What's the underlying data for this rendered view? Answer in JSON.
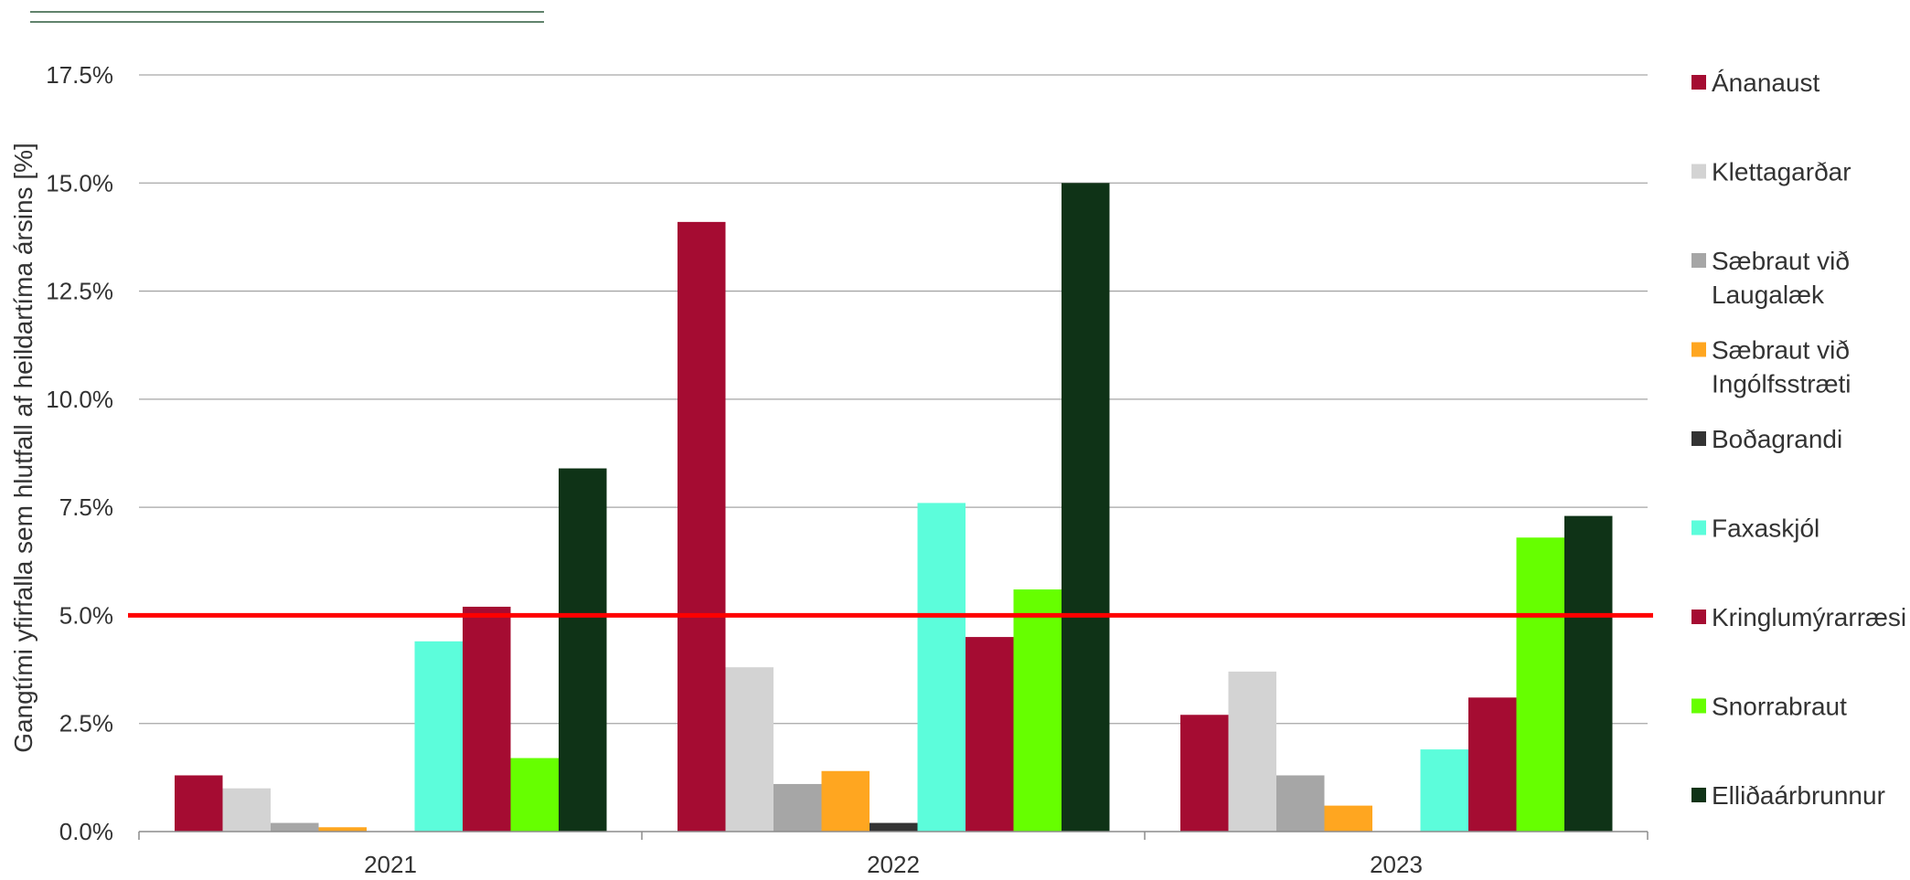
{
  "chart_data": {
    "type": "bar",
    "title": "",
    "xlabel": "",
    "ylabel": "Gangtími yfirfalla sem hlutfall af heildartíma ársins [%]",
    "ylim": [
      0,
      17.5
    ],
    "yticks": [
      "0.0%",
      "2.5%",
      "5.0%",
      "7.5%",
      "10.0%",
      "12.5%",
      "15.0%",
      "17.5%"
    ],
    "ytick_values": [
      0,
      2.5,
      5,
      7.5,
      10,
      12.5,
      15,
      17.5
    ],
    "grid": "horizontal",
    "legend_position": "right",
    "categories": [
      "2021",
      "2022",
      "2023"
    ],
    "series": [
      {
        "name": "Ánanaust",
        "color": "#a50c32",
        "values": [
          1.3,
          14.1,
          2.7
        ]
      },
      {
        "name": "Klettagarðar",
        "color": "#d3d3d3",
        "values": [
          1.0,
          3.8,
          3.7
        ]
      },
      {
        "name": "Sæbraut við Laugalæk",
        "color": "#a6a6a6",
        "values": [
          0.2,
          1.1,
          1.3
        ]
      },
      {
        "name": "Sæbraut við Ingólfsstræti",
        "color": "#ffa620",
        "values": [
          0.1,
          1.4,
          0.6
        ]
      },
      {
        "name": "Boðagrandi",
        "color": "#333333",
        "values": [
          0.0,
          0.2,
          0.0
        ]
      },
      {
        "name": "Faxaskjól",
        "color": "#5cfddb",
        "values": [
          4.4,
          7.6,
          1.9
        ]
      },
      {
        "name": "Kringlumýrarræsi",
        "color": "#a50c32",
        "values": [
          5.2,
          4.5,
          3.1
        ]
      },
      {
        "name": "Snorrabraut",
        "color": "#66ff00",
        "values": [
          1.7,
          5.6,
          6.8
        ]
      },
      {
        "name": "Elliðaárbrunnur",
        "color": "#0f3317",
        "values": [
          8.4,
          15.0,
          7.3
        ]
      }
    ],
    "legend_lines": [
      [
        "Ánanaust"
      ],
      [
        "Klettagarðar"
      ],
      [
        "Sæbraut við",
        "Laugalæk"
      ],
      [
        "Sæbraut við",
        "Ingólfsstræti"
      ],
      [
        "Boðagrandi"
      ],
      [
        "Faxaskjól"
      ],
      [
        "Kringlumýrarræsi"
      ],
      [
        "Snorrabraut"
      ],
      [
        "Elliðaárbrunnur"
      ]
    ],
    "reference_line": {
      "value": 5.0,
      "color": "#ff0000"
    },
    "header_rule_color": "#2d5a3c"
  }
}
